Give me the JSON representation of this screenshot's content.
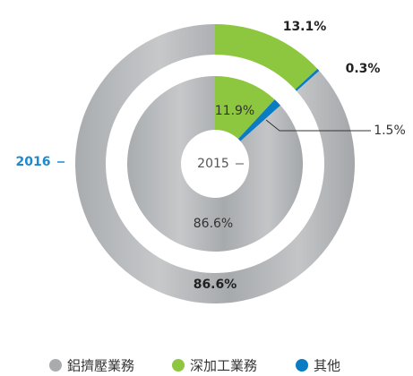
{
  "chart_data": {
    "type": "donut",
    "categories": [
      "鋁擠壓業務",
      "深加工業務",
      "其他"
    ],
    "colors": [
      "#b3b6b9",
      "#8dc63f",
      "#0a7cc1"
    ],
    "series": [
      {
        "name": "2016",
        "values": [
          86.6,
          13.1,
          0.3
        ],
        "value_labels": [
          "86.6%",
          "13.1%",
          "0.3%"
        ]
      },
      {
        "name": "2015",
        "values": [
          86.6,
          11.9,
          1.5
        ],
        "value_labels": [
          "86.6%",
          "11.9%",
          "1.5%"
        ]
      }
    ]
  }
}
